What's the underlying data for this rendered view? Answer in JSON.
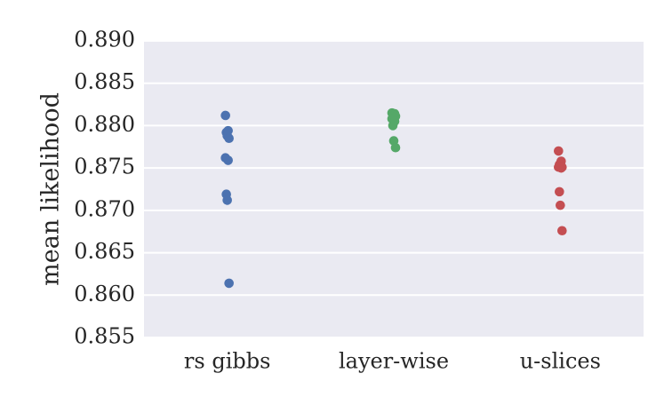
{
  "chart_data": {
    "type": "scatter",
    "title": "",
    "xlabel": "",
    "ylabel": "mean likelihood",
    "ylim": [
      0.855,
      0.89
    ],
    "yticks": [
      "0.855",
      "0.860",
      "0.865",
      "0.870",
      "0.875",
      "0.880",
      "0.885",
      "0.890"
    ],
    "categories": [
      "rs gibbs",
      "layer-wise",
      "u-slices"
    ],
    "grid": true,
    "legend": "none",
    "colors": {
      "background": "#eaeaf2",
      "grid": "#ffffff",
      "text": "#262626"
    },
    "series": [
      {
        "category": "rs gibbs",
        "color": "#4c72b0",
        "values": [
          0.8812,
          0.8794,
          0.8792,
          0.8788,
          0.8785,
          0.8762,
          0.8759,
          0.8719,
          0.8712,
          0.8614
        ]
      },
      {
        "category": "layer-wise",
        "color": "#55a868",
        "values": [
          0.8815,
          0.8814,
          0.8813,
          0.8812,
          0.8811,
          0.8808,
          0.8805,
          0.88,
          0.8782,
          0.8774
        ]
      },
      {
        "category": "u-slices",
        "color": "#c44e52",
        "values": [
          0.877,
          0.8758,
          0.8754,
          0.8752,
          0.8751,
          0.8751,
          0.875,
          0.8722,
          0.8706,
          0.8676
        ]
      }
    ]
  }
}
